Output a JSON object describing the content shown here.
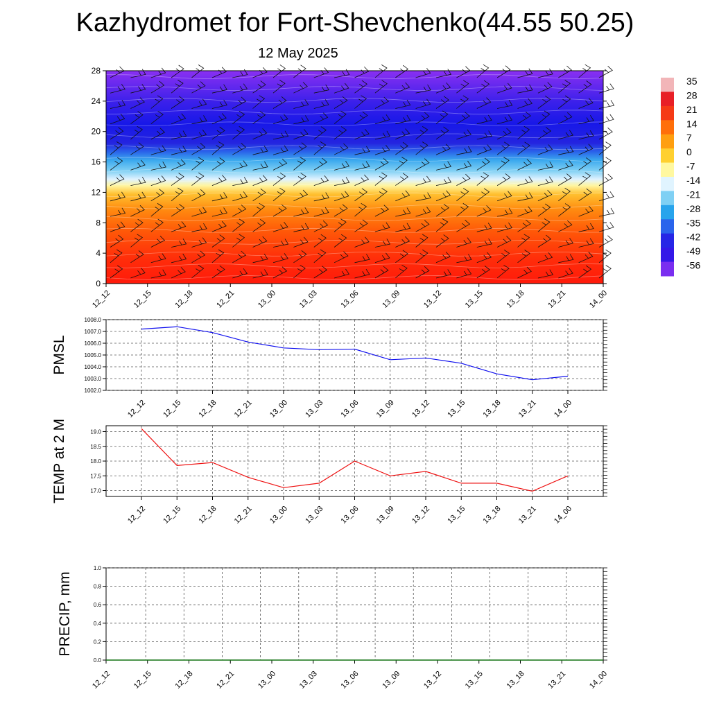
{
  "title": "Kazhydromet for Fort-Shevchenko(44.55 50.25)",
  "subtitle": "12 May 2025",
  "chart_data": [
    {
      "type": "heatmap",
      "y_ticks": [
        "0",
        "4",
        "8",
        "12",
        "16",
        "20",
        "24",
        "28"
      ],
      "ylim": [
        0,
        28
      ],
      "x_ticks": [
        "12_12",
        "12_15",
        "12_18",
        "12_21",
        "13_00",
        "13_03",
        "13_06",
        "13_09",
        "13_12",
        "13_15",
        "13_18",
        "13_21",
        "14_00"
      ],
      "colorbar_labels": [
        "35",
        "28",
        "21",
        "14",
        "7",
        "0",
        "-7",
        "-14",
        "-21",
        "-28",
        "-35",
        "-42",
        "-49",
        "-56"
      ],
      "colorbar_colors": [
        "#f2b5b8",
        "#e81f26",
        "#f53a16",
        "#ff6f0a",
        "#ff9f10",
        "#ffd030",
        "#fff8a0",
        "#e0f4ff",
        "#7fd0f4",
        "#28a4ec",
        "#2a64ec",
        "#2626e6",
        "#3418e8",
        "#7a2ef0"
      ],
      "grid": false
    },
    {
      "type": "line",
      "ylabel": "PMSL",
      "ylim": [
        1002.0,
        1008.0
      ],
      "y_ticks": [
        "1002.0",
        "1003.0",
        "1004.0",
        "1005.0",
        "1006.0",
        "1007.0",
        "1008.0"
      ],
      "categories": [
        "12_12",
        "12_15",
        "12_18",
        "12_21",
        "13_00",
        "13_03",
        "13_06",
        "13_09",
        "13_12",
        "13_15",
        "13_18",
        "13_21",
        "14_00"
      ],
      "values": [
        1007.2,
        1007.4,
        1006.9,
        1006.1,
        1005.6,
        1005.45,
        1005.5,
        1004.6,
        1004.75,
        1004.3,
        1003.4,
        1002.9,
        1003.2
      ],
      "color": "#1010ee",
      "grid": true
    },
    {
      "type": "line",
      "ylabel": "TEMP at 2 M",
      "ylim": [
        16.8,
        19.2
      ],
      "y_ticks": [
        "17.0",
        "17.5",
        "18.0",
        "18.5",
        "19.0"
      ],
      "categories": [
        "12_12",
        "12_15",
        "12_18",
        "12_21",
        "13_00",
        "13_03",
        "13_06",
        "13_09",
        "13_12",
        "13_15",
        "13_18",
        "13_21",
        "14_00"
      ],
      "values": [
        19.1,
        17.85,
        17.95,
        17.45,
        17.1,
        17.25,
        18.0,
        17.5,
        17.65,
        17.25,
        17.25,
        16.98,
        17.5
      ],
      "color": "#ee1010",
      "grid": true
    },
    {
      "type": "line",
      "ylabel": "PRECIP, mm",
      "ylim": [
        0.0,
        1.0
      ],
      "y_ticks": [
        "0.0",
        "0.2",
        "0.4",
        "0.6",
        "0.8",
        "1.0"
      ],
      "x_ticks": [
        "12_12",
        "12_15",
        "12_18",
        "12_21",
        "13_00",
        "13_03",
        "13_06",
        "13_09",
        "13_12",
        "13_15",
        "13_18",
        "13_21",
        "14_00"
      ],
      "values": [
        0,
        0,
        0,
        0,
        0,
        0,
        0,
        0,
        0,
        0,
        0,
        0,
        0
      ],
      "color": "#107010",
      "grid": true
    }
  ]
}
